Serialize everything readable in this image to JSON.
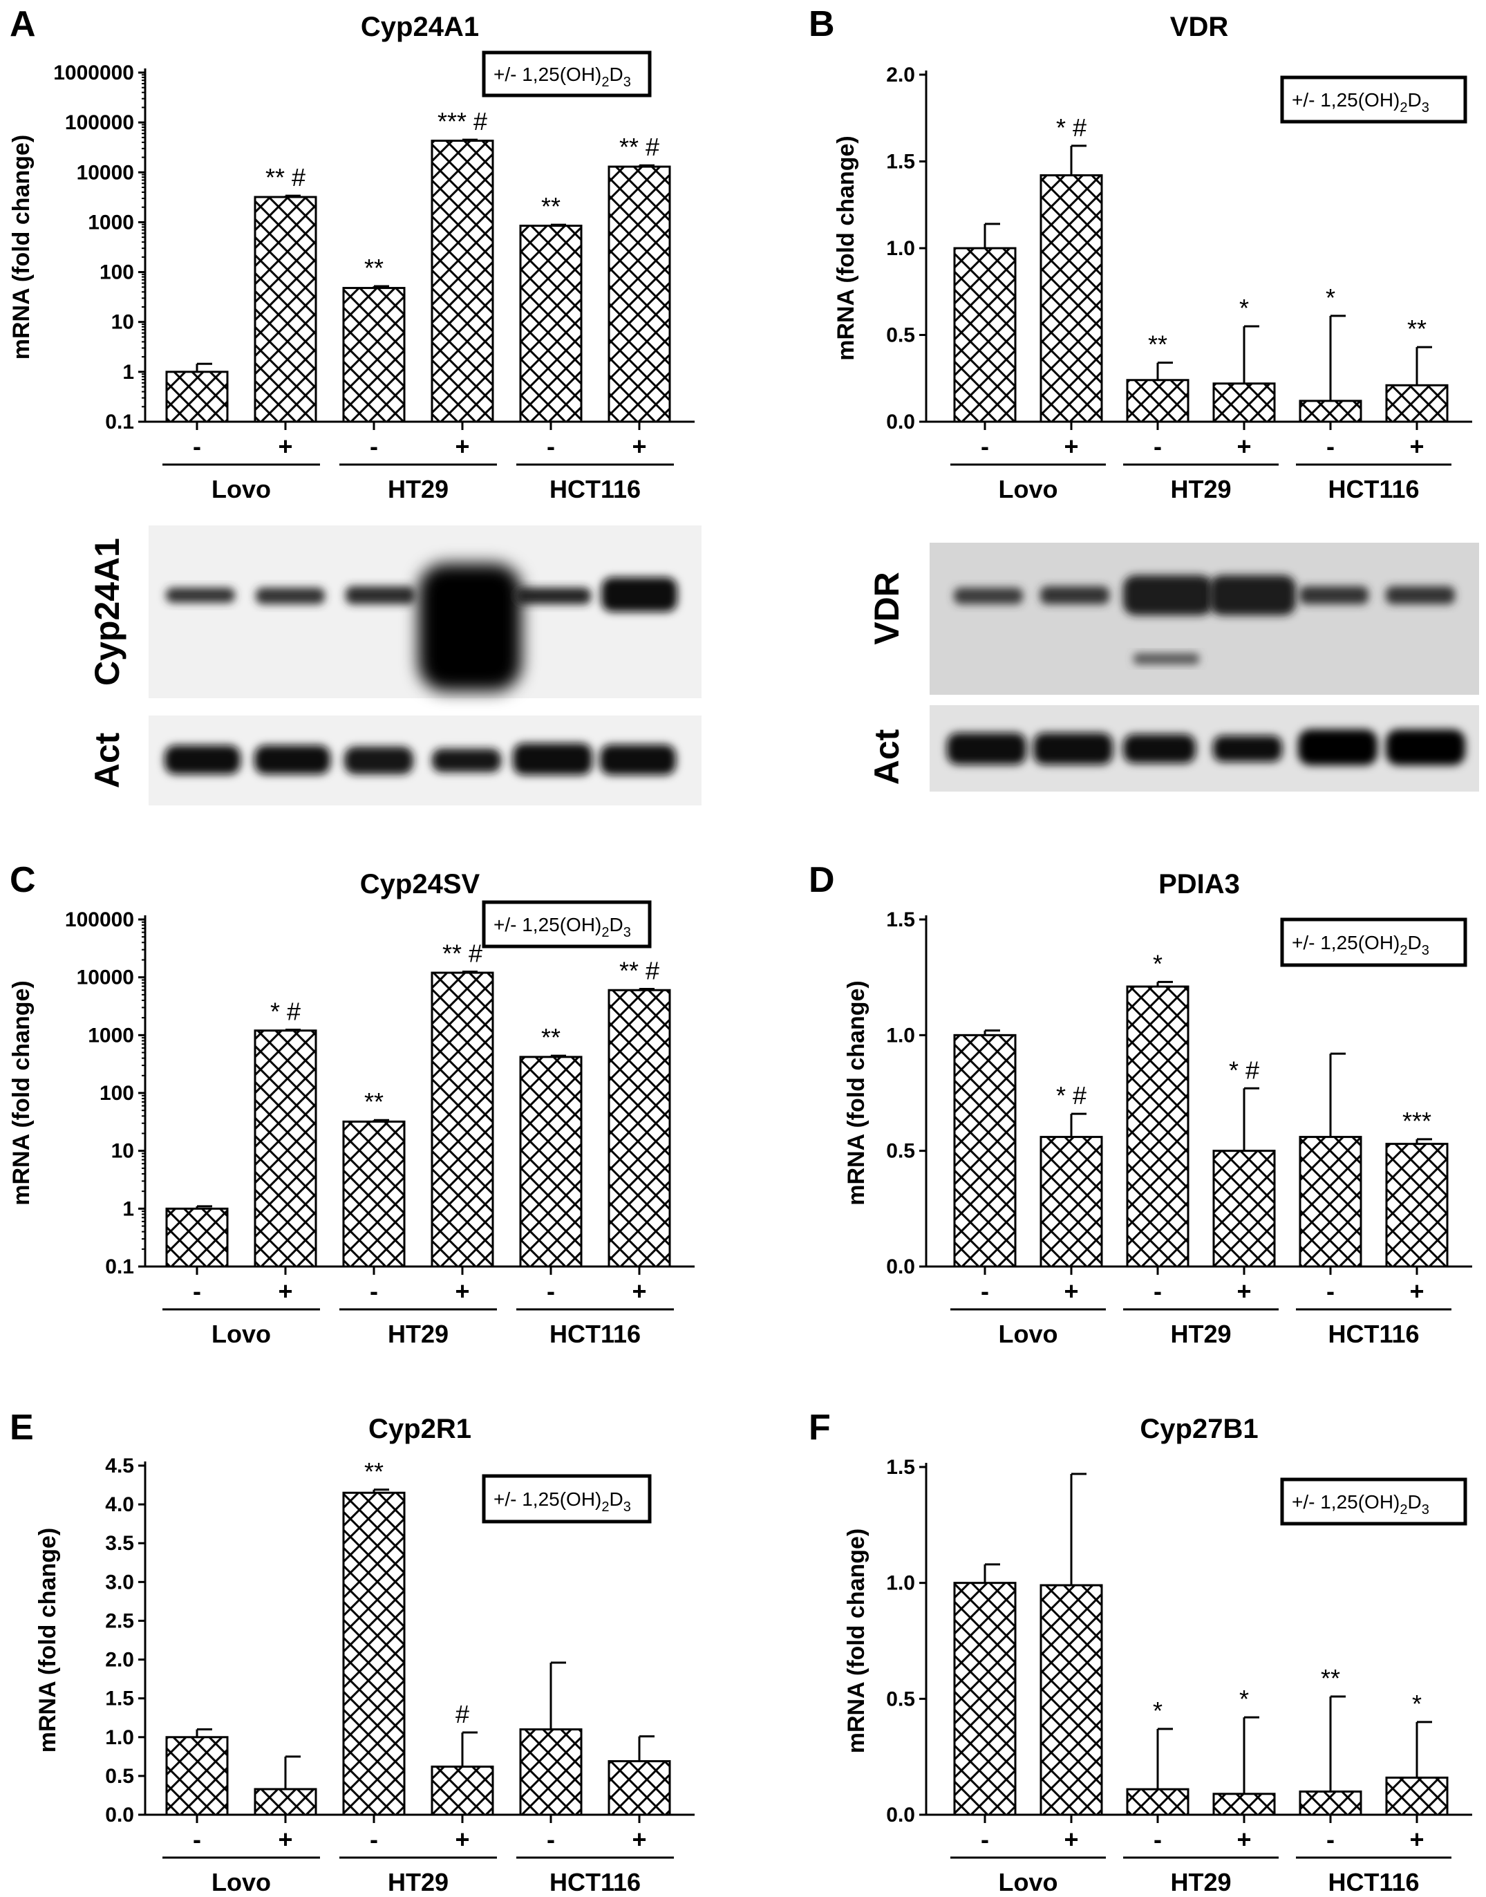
{
  "legend_text": "+/- 1,25(OH)",
  "legend_sub": "2",
  "legend_text2": "D",
  "legend_sub2": "3",
  "chart_data": [
    {
      "panel": "A",
      "type": "bar",
      "title": "Cyp24A1",
      "ylabel": "mRNA (fold change)",
      "scale": "log",
      "ylim": [
        0.1,
        1000000
      ],
      "ticks": [
        "0.1",
        "1",
        "10",
        "100",
        "1000",
        "10000",
        "100000",
        "1000000"
      ],
      "tick_values": [
        0.1,
        1,
        10,
        100,
        1000,
        10000,
        100000,
        1000000
      ],
      "treatment": [
        "-",
        "+",
        "-",
        "+",
        "-",
        "+"
      ],
      "groups": [
        "Lovo",
        "HT29",
        "HCT116"
      ],
      "values": [
        1,
        3200,
        48,
        43000,
        850,
        13000
      ],
      "errors": [
        0.45,
        200,
        4,
        2000,
        40,
        800
      ],
      "annotations": [
        "",
        "** #",
        "**",
        "*** #",
        "**",
        "** #"
      ]
    },
    {
      "panel": "B",
      "type": "bar",
      "title": "VDR",
      "ylabel": "mRNA (fold change)",
      "scale": "linear",
      "ylim": [
        0,
        2.0
      ],
      "ticks": [
        "0.0",
        "0.5",
        "1.0",
        "1.5",
        "2.0"
      ],
      "tick_values": [
        0,
        0.5,
        1,
        1.5,
        2
      ],
      "treatment": [
        "-",
        "+",
        "-",
        "+",
        "-",
        "+"
      ],
      "groups": [
        "Lovo",
        "HT29",
        "HCT116"
      ],
      "values": [
        1.0,
        1.42,
        0.24,
        0.22,
        0.12,
        0.21
      ],
      "errors": [
        0.14,
        0.17,
        0.1,
        0.33,
        0.49,
        0.22
      ],
      "annotations": [
        "",
        "* #",
        "**",
        "*",
        "*",
        "**"
      ]
    },
    {
      "panel": "C",
      "type": "bar",
      "title": "Cyp24SV",
      "ylabel": "mRNA (fold change)",
      "scale": "log",
      "ylim": [
        0.1,
        100000
      ],
      "ticks": [
        "0.1",
        "1",
        "10",
        "100",
        "1000",
        "10000",
        "100000"
      ],
      "tick_values": [
        0.1,
        1,
        10,
        100,
        1000,
        10000,
        100000
      ],
      "treatment": [
        "-",
        "+",
        "-",
        "+",
        "-",
        "+"
      ],
      "groups": [
        "Lovo",
        "HT29",
        "HCT116"
      ],
      "values": [
        1,
        1200,
        32,
        12000,
        420,
        6000
      ],
      "errors": [
        0.1,
        40,
        2,
        500,
        20,
        300
      ],
      "annotations": [
        "",
        "* #",
        "**",
        "** #",
        "**",
        "** #"
      ]
    },
    {
      "panel": "D",
      "type": "bar",
      "title": "PDIA3",
      "ylabel": "mRNA (fold change)",
      "scale": "linear",
      "ylim": [
        0,
        1.5
      ],
      "ticks": [
        "0.0",
        "0.5",
        "1.0",
        "1.5"
      ],
      "tick_values": [
        0,
        0.5,
        1,
        1.5
      ],
      "treatment": [
        "-",
        "+",
        "-",
        "+",
        "-",
        "+"
      ],
      "groups": [
        "Lovo",
        "HT29",
        "HCT116"
      ],
      "values": [
        1.0,
        0.56,
        1.21,
        0.5,
        0.56,
        0.53
      ],
      "errors": [
        0.02,
        0.1,
        0.02,
        0.27,
        0.36,
        0.02
      ],
      "annotations": [
        "",
        "* #",
        "*",
        "* #",
        "",
        "***"
      ]
    },
    {
      "panel": "E",
      "type": "bar",
      "title": "Cyp2R1",
      "ylabel": "mRNA (fold change)",
      "scale": "linear",
      "ylim": [
        0,
        4.5
      ],
      "ticks": [
        "0.0",
        "0.5",
        "1.0",
        "1.5",
        "2.0",
        "2.5",
        "3.0",
        "3.5",
        "4.0",
        "4.5"
      ],
      "tick_values": [
        0,
        0.5,
        1,
        1.5,
        2,
        2.5,
        3,
        3.5,
        4,
        4.5
      ],
      "treatment": [
        "-",
        "+",
        "-",
        "+",
        "-",
        "+"
      ],
      "groups": [
        "Lovo",
        "HT29",
        "HCT116"
      ],
      "values": [
        1.0,
        0.33,
        4.15,
        0.62,
        1.1,
        0.69
      ],
      "errors": [
        0.1,
        0.42,
        0.04,
        0.44,
        0.86,
        0.32
      ],
      "annotations": [
        "",
        "",
        "**",
        "#",
        "",
        ""
      ]
    },
    {
      "panel": "F",
      "type": "bar",
      "title": "Cyp27B1",
      "ylabel": "mRNA (fold change)",
      "scale": "linear",
      "ylim": [
        0,
        1.5
      ],
      "ticks": [
        "0.0",
        "0.5",
        "1.0",
        "1.5"
      ],
      "tick_values": [
        0,
        0.5,
        1,
        1.5
      ],
      "treatment": [
        "-",
        "+",
        "-",
        "+",
        "-",
        "+"
      ],
      "groups": [
        "Lovo",
        "HT29",
        "HCT116"
      ],
      "values": [
        1.0,
        0.99,
        0.11,
        0.09,
        0.1,
        0.16
      ],
      "errors": [
        0.08,
        0.48,
        0.26,
        0.33,
        0.41,
        0.24
      ],
      "annotations": [
        "",
        "",
        "*",
        "*",
        "**",
        "*"
      ]
    }
  ],
  "blots": [
    {
      "panel": "A",
      "target_label": "Cyp24A1",
      "loading_label": "Act"
    },
    {
      "panel": "B",
      "target_label": "VDR",
      "loading_label": "Act"
    }
  ]
}
